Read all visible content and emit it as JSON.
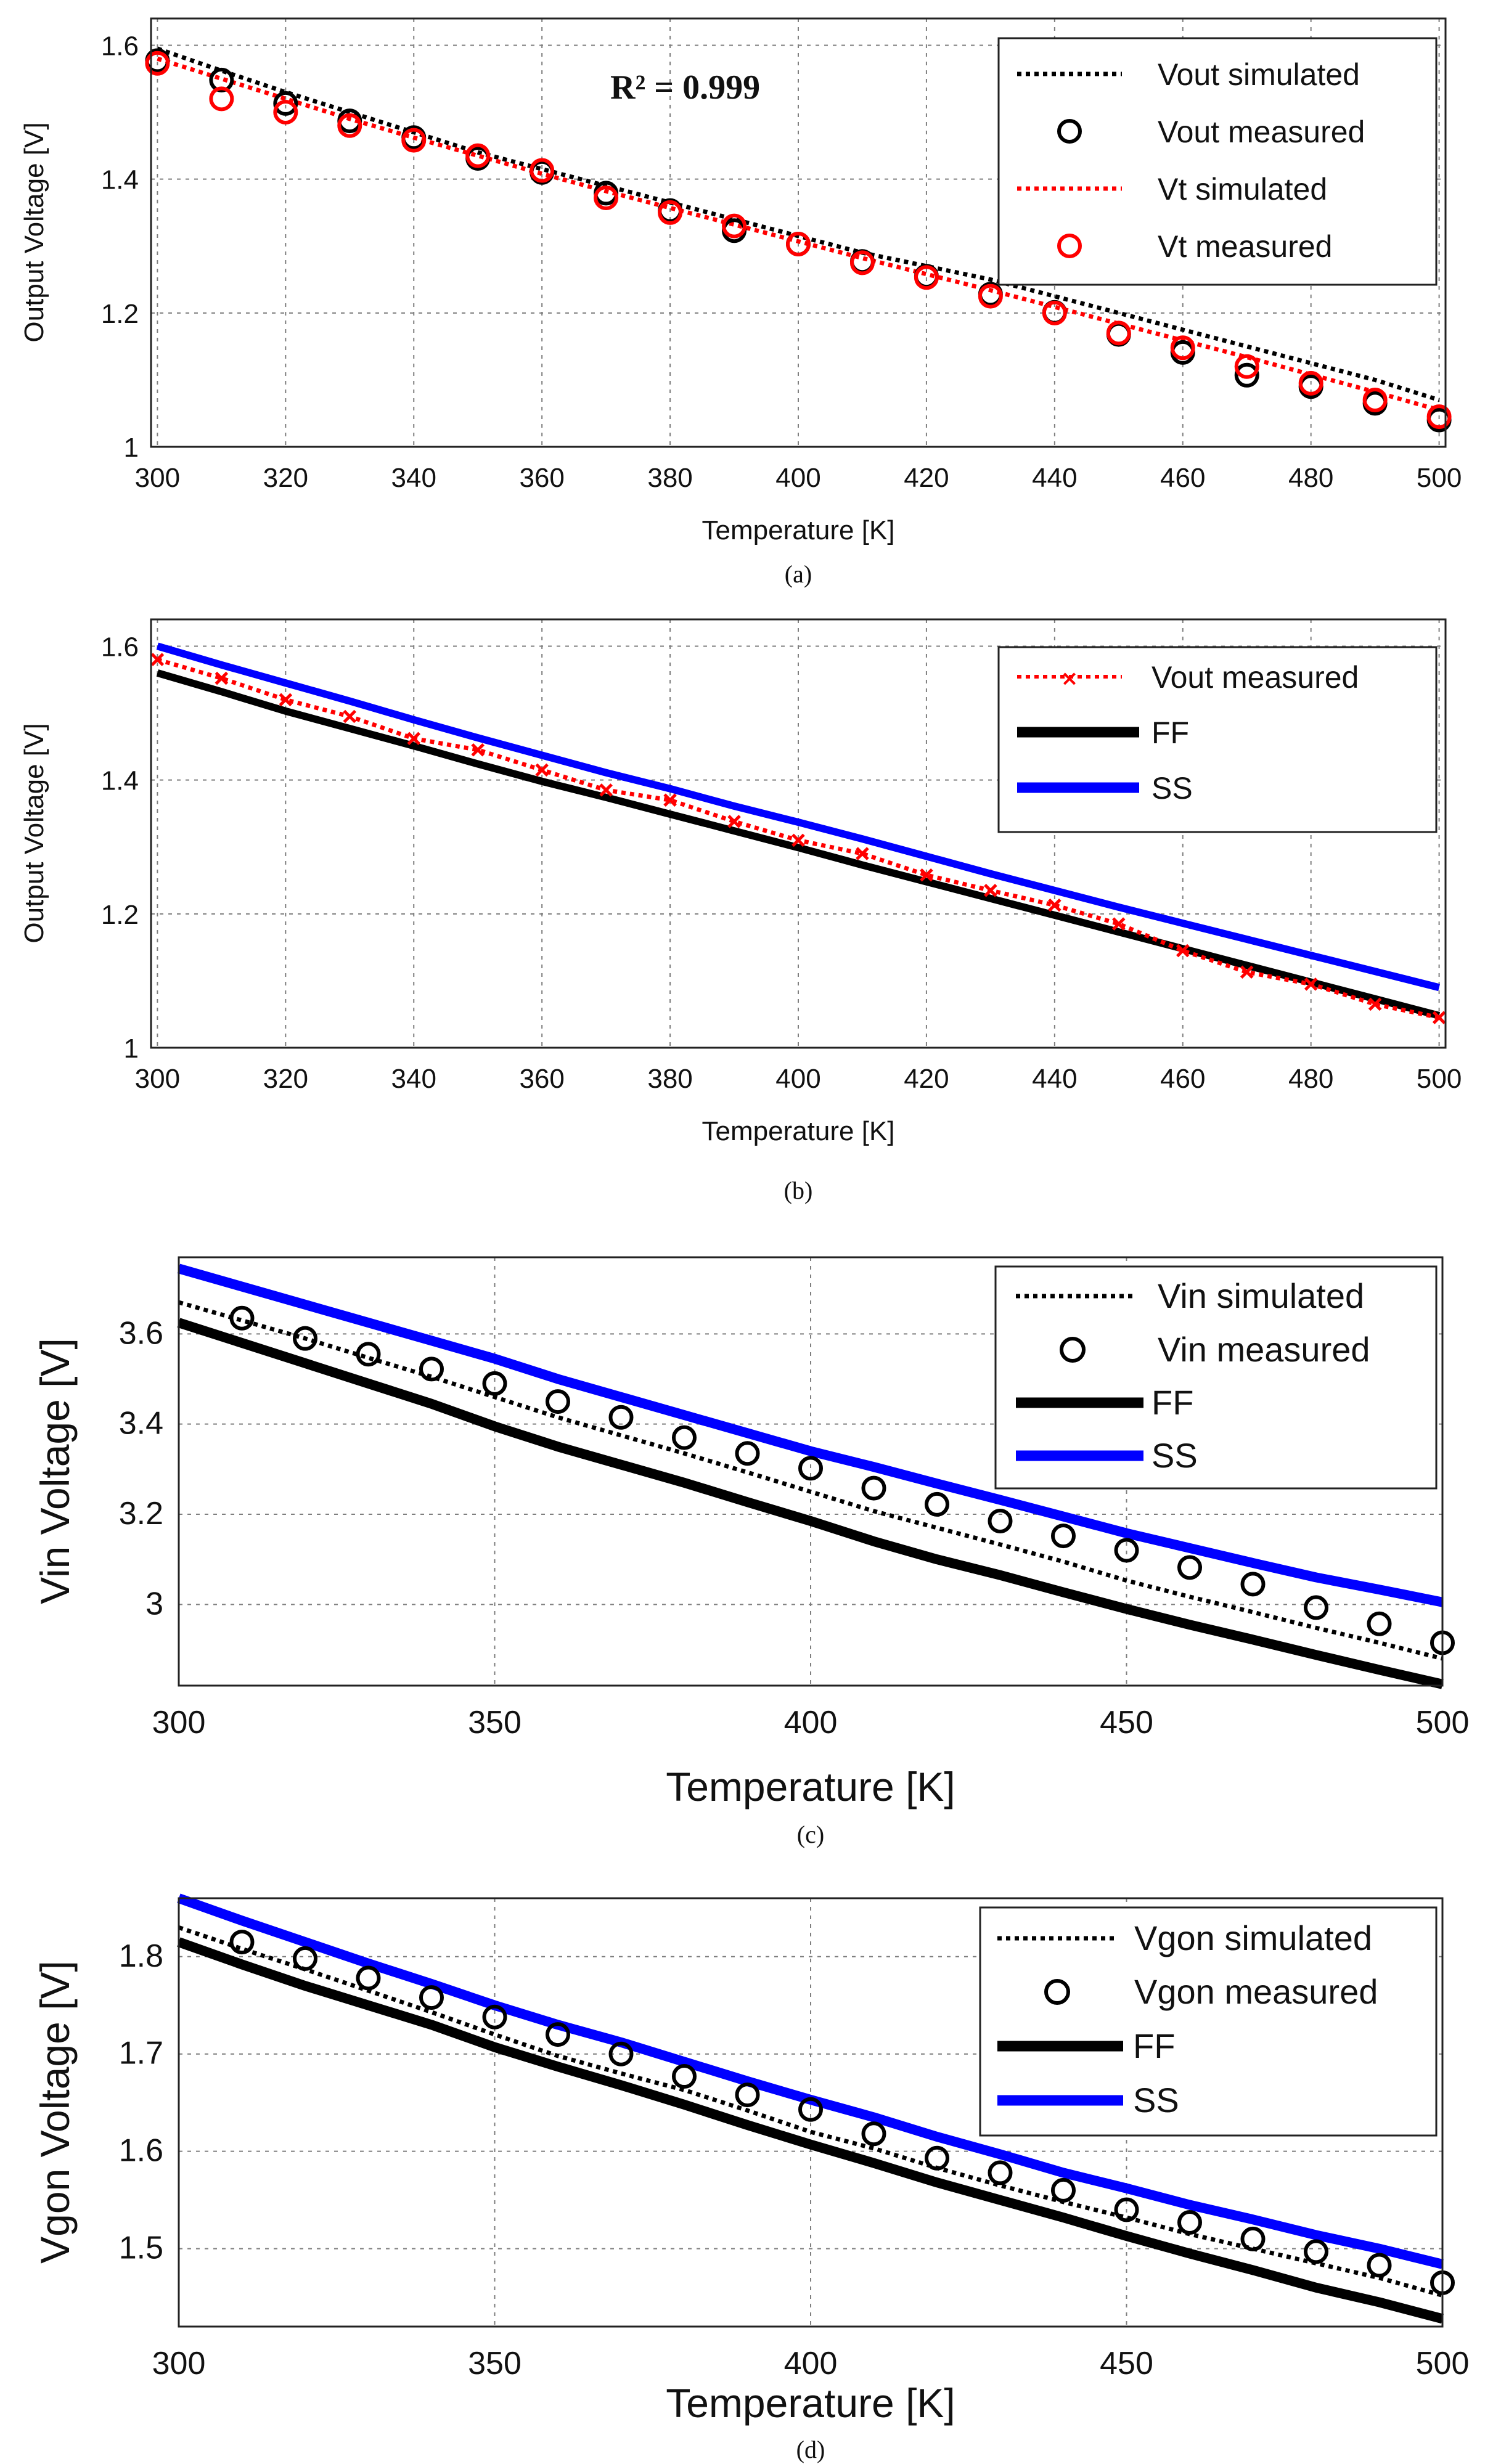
{
  "chart_data": [
    {
      "panel": "a",
      "type": "line",
      "caption": "(a)",
      "xlabel": "Temperature [K]",
      "ylabel": "Output Voltage [V]",
      "xlim": [
        299,
        501
      ],
      "ylim": [
        1,
        1.64
      ],
      "xticks": [
        300,
        320,
        340,
        360,
        380,
        400,
        420,
        440,
        460,
        480,
        500
      ],
      "yticks": [
        1,
        1.2,
        1.4,
        1.6
      ],
      "ytick_labels": [
        "1",
        "1.2",
        "1.4",
        "1.6"
      ],
      "grid": true,
      "legend_position": "top-right",
      "annotation": "R² = 0.999",
      "x": [
        300,
        310,
        320,
        330,
        340,
        350,
        360,
        370,
        380,
        390,
        400,
        410,
        420,
        430,
        440,
        450,
        460,
        470,
        480,
        490,
        500
      ],
      "series": [
        {
          "name": "Vout simulated",
          "style": "dotted",
          "color": "#000000",
          "values": [
            1.595,
            1.562,
            1.53,
            1.5,
            1.47,
            1.44,
            1.415,
            1.39,
            1.365,
            1.34,
            1.315,
            1.29,
            1.27,
            1.25,
            1.225,
            1.2,
            1.175,
            1.15,
            1.125,
            1.1,
            1.07
          ]
        },
        {
          "name": "Vout measured",
          "style": "circle",
          "color": "#000000",
          "values": [
            1.577,
            1.548,
            1.513,
            1.487,
            1.462,
            1.431,
            1.41,
            1.379,
            1.353,
            1.323,
            1.303,
            1.277,
            1.255,
            1.228,
            1.201,
            1.168,
            1.141,
            1.107,
            1.09,
            1.065,
            1.04
          ]
        },
        {
          "name": "Vt simulated",
          "style": "dotted",
          "color": "#ff0000",
          "values": [
            1.58,
            1.55,
            1.52,
            1.49,
            1.462,
            1.435,
            1.408,
            1.382,
            1.357,
            1.332,
            1.307,
            1.282,
            1.258,
            1.234,
            1.209,
            1.184,
            1.159,
            1.134,
            1.108,
            1.082,
            1.055
          ]
        },
        {
          "name": "Vt measured",
          "style": "circle",
          "color": "#ff0000",
          "values": [
            1.573,
            1.52,
            1.5,
            1.48,
            1.458,
            1.435,
            1.413,
            1.372,
            1.35,
            1.33,
            1.303,
            1.275,
            1.253,
            1.225,
            1.2,
            1.17,
            1.148,
            1.12,
            1.095,
            1.07,
            1.045
          ]
        }
      ]
    },
    {
      "panel": "b",
      "type": "line",
      "caption": "(b)",
      "xlabel": "Temperature [K]",
      "ylabel": "Output Voltage [V]",
      "xlim": [
        299,
        501
      ],
      "ylim": [
        1,
        1.64
      ],
      "xticks": [
        300,
        320,
        340,
        360,
        380,
        400,
        420,
        440,
        460,
        480,
        500
      ],
      "yticks": [
        1,
        1.2,
        1.4,
        1.6
      ],
      "ytick_labels": [
        "1",
        "1.2",
        "1.4",
        "1.6"
      ],
      "grid": true,
      "legend_position": "top-right",
      "x": [
        300,
        310,
        320,
        330,
        340,
        350,
        360,
        370,
        380,
        390,
        400,
        410,
        420,
        430,
        440,
        450,
        460,
        470,
        480,
        490,
        500
      ],
      "series": [
        {
          "name": "Vout measured",
          "style": "dotted-x",
          "color": "#ff0000",
          "values": [
            1.58,
            1.552,
            1.52,
            1.495,
            1.462,
            1.445,
            1.415,
            1.385,
            1.37,
            1.338,
            1.31,
            1.29,
            1.258,
            1.235,
            1.213,
            1.185,
            1.145,
            1.113,
            1.095,
            1.065,
            1.045
          ]
        },
        {
          "name": "FF",
          "style": "solid",
          "color": "#000000",
          "values": [
            1.56,
            1.532,
            1.503,
            1.477,
            1.451,
            1.424,
            1.398,
            1.374,
            1.349,
            1.324,
            1.299,
            1.273,
            1.248,
            1.223,
            1.198,
            1.173,
            1.148,
            1.123,
            1.098,
            1.073,
            1.048
          ]
        },
        {
          "name": "SS",
          "style": "solid",
          "color": "#0000ff",
          "values": [
            1.6,
            1.572,
            1.545,
            1.518,
            1.49,
            1.463,
            1.437,
            1.411,
            1.387,
            1.361,
            1.337,
            1.312,
            1.286,
            1.26,
            1.235,
            1.21,
            1.186,
            1.162,
            1.138,
            1.114,
            1.09
          ]
        }
      ]
    },
    {
      "panel": "c",
      "type": "line",
      "caption": "(c)",
      "xlabel": "Temperature [K]",
      "ylabel": "Vin Voltage [V]",
      "xlim": [
        300,
        500
      ],
      "ylim": [
        2.82,
        3.77
      ],
      "xticks": [
        300,
        350,
        400,
        450,
        500
      ],
      "yticks": [
        3,
        3.2,
        3.4,
        3.6
      ],
      "ytick_labels": [
        "3",
        "3.2",
        "3.4",
        "3.6"
      ],
      "grid": true,
      "legend_position": "top-right",
      "x": [
        300,
        310,
        320,
        330,
        340,
        350,
        360,
        370,
        380,
        390,
        400,
        410,
        420,
        430,
        440,
        450,
        460,
        470,
        480,
        490,
        500
      ],
      "series": [
        {
          "name": "Vin simulated",
          "style": "dotted",
          "color": "#000000",
          "values": [
            3.67,
            3.63,
            3.59,
            3.547,
            3.505,
            3.46,
            3.415,
            3.375,
            3.335,
            3.293,
            3.25,
            3.207,
            3.17,
            3.133,
            3.095,
            3.053,
            3.017,
            2.983,
            2.948,
            2.915,
            2.88
          ]
        },
        {
          "name": "Vin measured",
          "style": "circle",
          "color": "#000000",
          "x": [
            310,
            320,
            330,
            340,
            350,
            360,
            370,
            380,
            390,
            400,
            410,
            420,
            430,
            440,
            450,
            460,
            470,
            480,
            490,
            500
          ],
          "values": [
            3.635,
            3.59,
            3.555,
            3.522,
            3.49,
            3.45,
            3.415,
            3.37,
            3.335,
            3.302,
            3.258,
            3.222,
            3.185,
            3.152,
            3.12,
            3.082,
            3.045,
            2.993,
            2.957,
            2.915
          ]
        },
        {
          "name": "FF",
          "style": "solid",
          "color": "#000000",
          "values": [
            3.625,
            3.58,
            3.535,
            3.49,
            3.445,
            3.395,
            3.35,
            3.31,
            3.27,
            3.227,
            3.185,
            3.14,
            3.1,
            3.065,
            3.027,
            2.99,
            2.955,
            2.922,
            2.888,
            2.855,
            2.823
          ]
        },
        {
          "name": "SS",
          "style": "solid",
          "color": "#0000ff",
          "values": [
            3.745,
            3.705,
            3.665,
            3.625,
            3.585,
            3.545,
            3.5,
            3.46,
            3.42,
            3.38,
            3.34,
            3.305,
            3.268,
            3.232,
            3.195,
            3.158,
            3.125,
            3.092,
            3.06,
            3.033,
            3.005
          ]
        }
      ]
    },
    {
      "panel": "d",
      "type": "line",
      "caption": "(d)",
      "xlabel": "Temperature [K]",
      "ylabel": "Vgon Voltage [V]",
      "xlim": [
        300,
        500
      ],
      "ylim": [
        1.42,
        1.86
      ],
      "xticks": [
        300,
        350,
        400,
        450,
        500
      ],
      "yticks": [
        1.5,
        1.6,
        1.7,
        1.8
      ],
      "ytick_labels": [
        "1.5",
        "1.6",
        "1.7",
        "1.8"
      ],
      "grid": true,
      "legend_position": "top-right",
      "x": [
        300,
        310,
        320,
        330,
        340,
        350,
        360,
        370,
        380,
        390,
        400,
        410,
        420,
        430,
        440,
        450,
        460,
        470,
        480,
        490,
        500
      ],
      "series": [
        {
          "name": "Vgon simulated",
          "style": "dotted",
          "color": "#000000",
          "values": [
            1.83,
            1.808,
            1.787,
            1.765,
            1.743,
            1.72,
            1.698,
            1.68,
            1.663,
            1.642,
            1.62,
            1.603,
            1.583,
            1.565,
            1.548,
            1.532,
            1.515,
            1.5,
            1.485,
            1.47,
            1.452
          ]
        },
        {
          "name": "Vgon measured",
          "style": "circle",
          "color": "#000000",
          "x": [
            310,
            320,
            330,
            340,
            350,
            360,
            370,
            380,
            390,
            400,
            410,
            420,
            430,
            440,
            450,
            460,
            470,
            480,
            490,
            500
          ],
          "values": [
            1.815,
            1.798,
            1.778,
            1.758,
            1.738,
            1.72,
            1.7,
            1.677,
            1.658,
            1.643,
            1.618,
            1.593,
            1.578,
            1.56,
            1.54,
            1.527,
            1.51,
            1.497,
            1.483,
            1.465
          ]
        },
        {
          "name": "FF",
          "style": "solid",
          "color": "#000000",
          "values": [
            1.815,
            1.792,
            1.77,
            1.75,
            1.73,
            1.707,
            1.687,
            1.668,
            1.648,
            1.627,
            1.607,
            1.588,
            1.568,
            1.55,
            1.532,
            1.513,
            1.495,
            1.478,
            1.46,
            1.445,
            1.428
          ]
        },
        {
          "name": "SS",
          "style": "solid",
          "color": "#0000ff",
          "values": [
            1.86,
            1.837,
            1.815,
            1.793,
            1.772,
            1.75,
            1.73,
            1.712,
            1.692,
            1.672,
            1.653,
            1.635,
            1.615,
            1.597,
            1.578,
            1.562,
            1.545,
            1.53,
            1.514,
            1.5,
            1.484
          ]
        }
      ]
    }
  ]
}
